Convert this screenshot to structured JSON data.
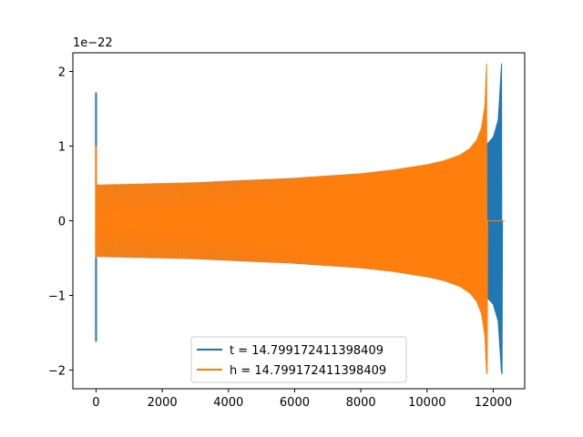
{
  "chart_data": {
    "type": "line",
    "title": "",
    "xlabel": "",
    "ylabel": "",
    "offset_text": "1e−22",
    "xlim": [
      -700,
      12950
    ],
    "ylim": [
      -2.25,
      2.25
    ],
    "xticks": [
      0,
      2000,
      4000,
      6000,
      8000,
      10000,
      12000
    ],
    "xtick_labels": [
      "0",
      "2000",
      "4000",
      "6000",
      "8000",
      "10000",
      "12000"
    ],
    "yticks": [
      -2,
      -1,
      0,
      1,
      2
    ],
    "ytick_labels": [
      "−2",
      "−1",
      "0",
      "1",
      "2"
    ],
    "grid": false,
    "legend_position": "lower center",
    "series": [
      {
        "name": "t = 14.799172411398409",
        "color": "#1f77b4",
        "envelope": {
          "x": [
            0,
            1000,
            2000,
            3000,
            4000,
            5000,
            6000,
            7000,
            8000,
            9000,
            10000,
            10500,
            11000,
            11500,
            11800,
            12000,
            12150,
            12250,
            12280
          ],
          "upper": [
            0.48,
            0.49,
            0.5,
            0.51,
            0.53,
            0.55,
            0.57,
            0.6,
            0.63,
            0.68,
            0.75,
            0.8,
            0.86,
            0.95,
            1.02,
            1.12,
            1.35,
            2.1,
            0
          ],
          "lower": [
            -0.48,
            -0.49,
            -0.5,
            -0.51,
            -0.53,
            -0.55,
            -0.57,
            -0.6,
            -0.63,
            -0.68,
            -0.75,
            -0.8,
            -0.86,
            -0.95,
            -1.02,
            -1.12,
            -1.35,
            -2.05,
            0
          ]
        },
        "start_spike": {
          "x": 0,
          "max": 1.72,
          "min": -1.62
        },
        "tail": {
          "x_start": 12280,
          "x_end": 12340,
          "value": 0
        }
      },
      {
        "name": "h = 14.799172411398409",
        "color": "#ff7f0e",
        "envelope": {
          "x": [
            0,
            1000,
            2000,
            3000,
            4000,
            5000,
            6000,
            7000,
            8000,
            9000,
            10000,
            10500,
            11000,
            11300,
            11500,
            11650,
            11750,
            11800,
            11830
          ],
          "upper": [
            0.48,
            0.49,
            0.5,
            0.51,
            0.53,
            0.55,
            0.57,
            0.6,
            0.63,
            0.68,
            0.75,
            0.8,
            0.88,
            0.97,
            1.08,
            1.25,
            1.55,
            2.1,
            0
          ],
          "lower": [
            -0.48,
            -0.49,
            -0.5,
            -0.51,
            -0.53,
            -0.55,
            -0.57,
            -0.6,
            -0.63,
            -0.68,
            -0.75,
            -0.8,
            -0.88,
            -0.97,
            -1.08,
            -1.25,
            -1.55,
            -2.05,
            0
          ]
        },
        "start_spike": {
          "x": 0,
          "max": 1.0,
          "min": -0.5
        },
        "tail": {
          "x_start": 11830,
          "x_end": 12340,
          "value": 0
        }
      }
    ]
  }
}
